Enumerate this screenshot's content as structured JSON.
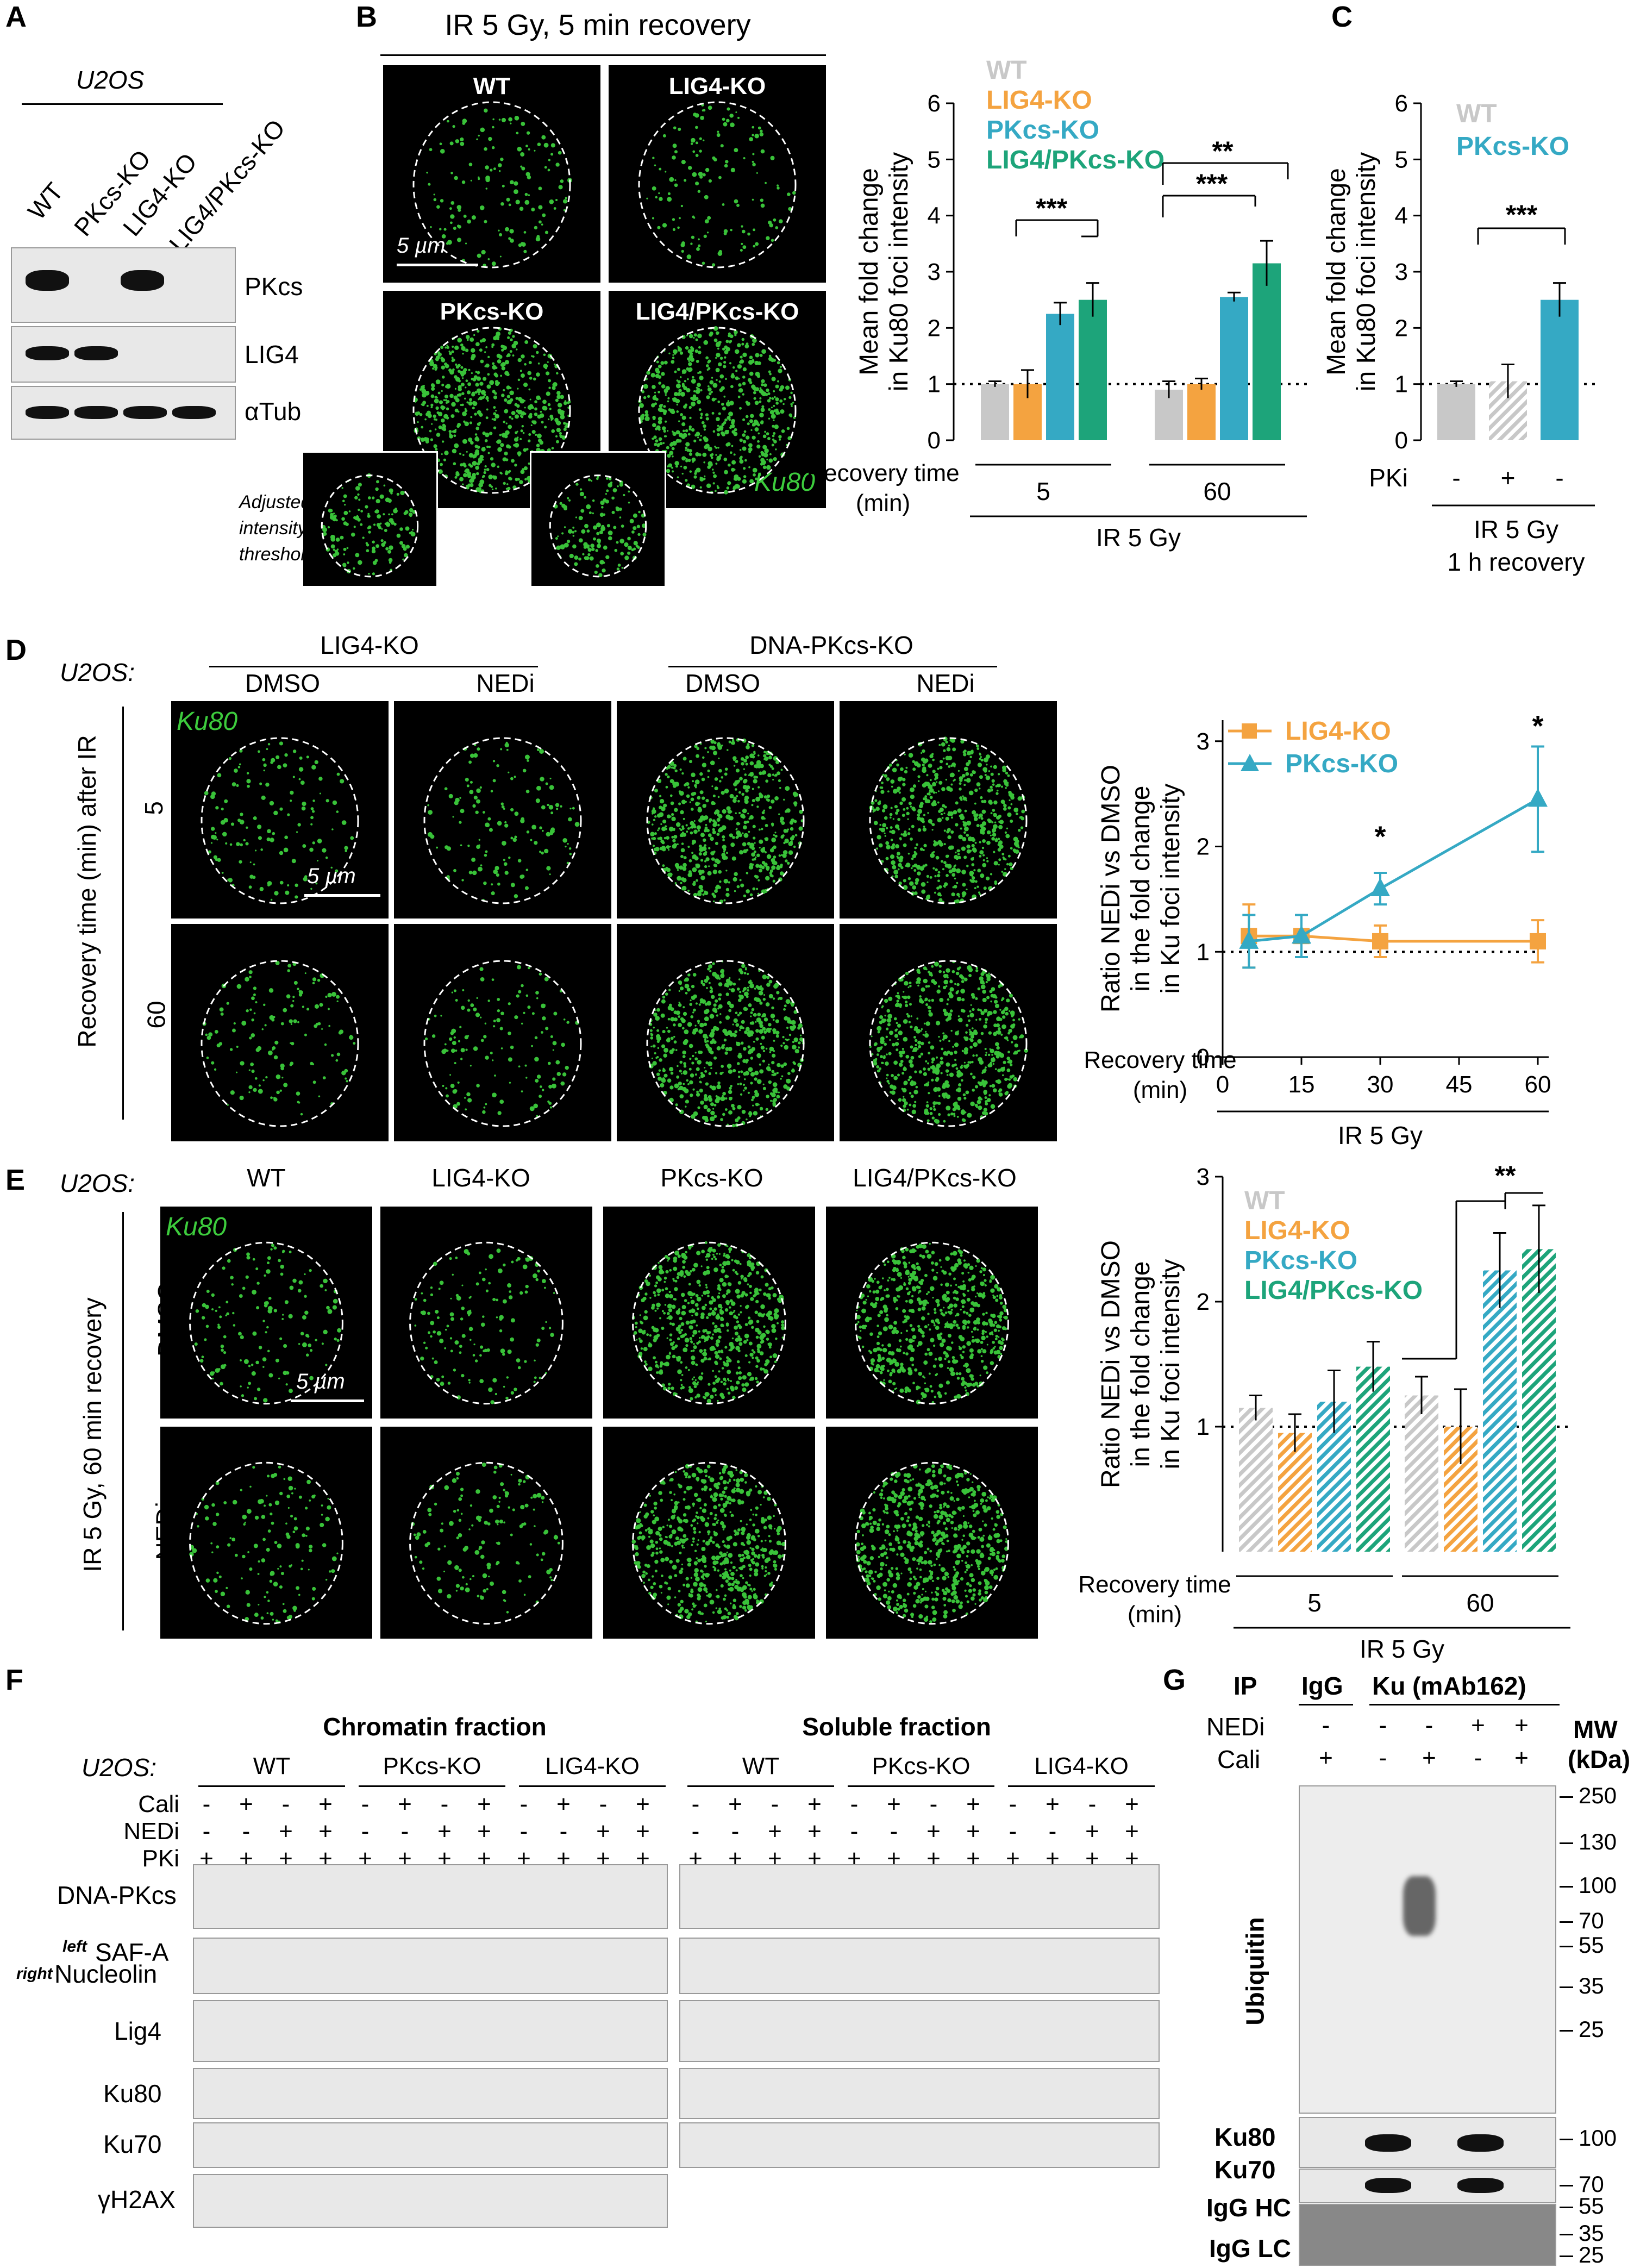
{
  "panel_labels": {
    "A": "A",
    "B": "B",
    "C": "C",
    "D": "D",
    "E": "E",
    "F": "F",
    "G": "G"
  },
  "panelA": {
    "cell_line": "U2OS",
    "lanes": [
      "WT",
      "PKcs-KO",
      "LIG4-KO",
      "LIG4/PKcs-KO"
    ],
    "blots": [
      "PKcs",
      "LIG4",
      "αTub"
    ]
  },
  "panelB": {
    "header": "IR 5 Gy, 5 min recovery",
    "images": [
      "WT",
      "LIG4-KO",
      "PKcs-KO",
      "LIG4/PKcs-KO"
    ],
    "scale": "5 µm",
    "stain": "Ku80",
    "adjusted_note": "Adjusted intensity threshold",
    "recovery_label": "Recovery time (min)",
    "ir_label": "IR 5 Gy"
  },
  "panelC": {
    "pki_label": "PKi",
    "pki_values": [
      "-",
      "+",
      "-"
    ],
    "ir_label": "IR 5  Gy",
    "recovery": "1 h recovery"
  },
  "panelD": {
    "cell_line": "U2OS:",
    "groups": [
      "LIG4-KO",
      "DNA-PKcs-KO"
    ],
    "treatments": [
      "DMSO",
      "NEDi",
      "DMSO",
      "NEDi"
    ],
    "row_axis": "Recovery time (min) after IR",
    "rows": [
      "5",
      "60"
    ],
    "stain": "Ku80",
    "scale": "5 µm"
  },
  "panelE": {
    "cell_line": "U2OS:",
    "columns": [
      "WT",
      "LIG4-KO",
      "PKcs-KO",
      "LIG4/PKcs-KO"
    ],
    "row_axis": "IR 5 Gy, 60 min recovery",
    "rows": [
      "DMSO",
      "NEDi"
    ],
    "stain": "Ku80",
    "scale": "5 µm"
  },
  "panelF": {
    "chromatin_title": "Chromatin fraction",
    "soluble_title": "Soluble fraction",
    "cell_line": "U2OS:",
    "groups": [
      "WT",
      "PKcs-KO",
      "LIG4-KO"
    ],
    "rows": {
      "cali": "Cali",
      "nedi": "NEDi",
      "pki": "PKi"
    },
    "cali": [
      "-",
      "+",
      "-",
      "+",
      "-",
      "+",
      "-",
      "+",
      "-",
      "+",
      "-",
      "+"
    ],
    "nedi": [
      "-",
      "-",
      "+",
      "+",
      "-",
      "-",
      "+",
      "+",
      "-",
      "-",
      "+",
      "+"
    ],
    "pki": [
      "+",
      "+",
      "+",
      "+",
      "+",
      "+",
      "+",
      "+",
      "+",
      "+",
      "+",
      "+"
    ],
    "blots": [
      "DNA-PKcs",
      "SAF-A",
      "Nucleolin",
      "Lig4",
      "Ku80",
      "Ku70",
      "γH2AX"
    ],
    "left": "left",
    "right": "right"
  },
  "panelG": {
    "ip": "IP",
    "igg": "IgG",
    "ku": "Ku (mAb162)",
    "nedi_label": "NEDi",
    "cali_label": "Cali",
    "nedi": [
      "-",
      "-",
      "-",
      "+",
      "+"
    ],
    "cali": [
      "+",
      "-",
      "+",
      "-",
      "+"
    ],
    "mw_label": "MW",
    "kda": "(kDa)",
    "blots": [
      "Ubiquitin",
      "Ku80",
      "Ku70",
      "IgG HC",
      "IgG LC"
    ],
    "mw_ubi": [
      "250",
      "130",
      "100",
      "70",
      "55",
      "35",
      "25"
    ],
    "mw_ku80": "100",
    "mw_ku70": "70",
    "mw_igg": [
      "55",
      "35",
      "25"
    ]
  },
  "chart_data": [
    {
      "type": "bar",
      "panel": "B",
      "ylabel": "Mean fold change in Ku80 foci intensity",
      "ylim": [
        0,
        6
      ],
      "yticks": [
        "0",
        "1",
        "2",
        "3",
        "4",
        "5",
        "6"
      ],
      "groups": [
        "5",
        "60"
      ],
      "series": [
        {
          "name": "WT",
          "color": "#c8c8c8",
          "values": [
            1.0,
            0.9
          ]
        },
        {
          "name": "LIG4-KO",
          "color": "#f4a340",
          "values": [
            1.0,
            1.0
          ]
        },
        {
          "name": "PKcs-KO",
          "color": "#35a9c4",
          "values": [
            2.25,
            2.55
          ]
        },
        {
          "name": "LIG4/PKcs-KO",
          "color": "#1da47a",
          "values": [
            2.5,
            3.15
          ]
        }
      ],
      "errors": [
        [
          0.05,
          0.15
        ],
        [
          0.25,
          0.1
        ],
        [
          0.2,
          0.08
        ],
        [
          0.3,
          0.4
        ]
      ],
      "significance": [
        "***",
        "***",
        "**"
      ]
    },
    {
      "type": "bar",
      "panel": "C",
      "ylabel": "Mean fold change in Ku80 foci intensity",
      "ylim": [
        0,
        6
      ],
      "yticks": [
        "0",
        "1",
        "2",
        "3",
        "4",
        "5",
        "6"
      ],
      "series": [
        {
          "name": "WT",
          "color": "#c8c8c8",
          "values": [
            1.0,
            1.05
          ]
        },
        {
          "name": "PKcs-KO",
          "color": "#35a9c4",
          "values": [
            2.5
          ]
        }
      ],
      "bar_values": [
        1.0,
        1.05,
        2.5
      ],
      "errors": [
        0.05,
        0.3,
        0.3
      ],
      "significance": [
        "***"
      ]
    },
    {
      "type": "line",
      "panel": "D",
      "ylabel": "Ratio NEDi vs DMSO in the fold change in Ku foci intensity",
      "xlabel": "Recovery time (min)",
      "under_label": "IR 5 Gy",
      "x": [
        5,
        15,
        30,
        60
      ],
      "xticks": [
        "0",
        "15",
        "30",
        "45",
        "60"
      ],
      "yticks": [
        "0",
        "1",
        "2",
        "3"
      ],
      "xlim": [
        0,
        60
      ],
      "ylim": [
        0,
        3.2
      ],
      "series": [
        {
          "name": "LIG4-KO",
          "color": "#f4a340",
          "values": [
            1.15,
            1.15,
            1.1,
            1.1
          ],
          "errors": [
            0.3,
            0.2,
            0.15,
            0.2
          ]
        },
        {
          "name": "PKcs-KO",
          "color": "#35a9c4",
          "values": [
            1.1,
            1.15,
            1.6,
            2.45
          ],
          "errors": [
            0.25,
            0.2,
            0.15,
            0.5
          ]
        }
      ],
      "significance": [
        "*",
        "*"
      ]
    },
    {
      "type": "bar",
      "panel": "E",
      "ylabel": "Ratio NEDi vs DMSO in the fold change in Ku foci intensity",
      "ylim": [
        0,
        3
      ],
      "yticks": [
        "1",
        "2",
        "3"
      ],
      "groups": [
        "5",
        "60"
      ],
      "series": [
        {
          "name": "WT",
          "color": "#c8c8c8",
          "values": [
            1.15,
            1.25
          ]
        },
        {
          "name": "LIG4-KO",
          "color": "#f4a340",
          "values": [
            0.95,
            1.0
          ]
        },
        {
          "name": "PKcs-KO",
          "color": "#35a9c4",
          "values": [
            1.2,
            2.25
          ]
        },
        {
          "name": "LIG4/PKcs-KO",
          "color": "#1da47a",
          "values": [
            1.48,
            2.42
          ]
        }
      ],
      "errors": [
        [
          0.1,
          0.15
        ],
        [
          0.15,
          0.3
        ],
        [
          0.25,
          0.3
        ],
        [
          0.2,
          0.35
        ]
      ],
      "significance": [
        "**"
      ]
    }
  ]
}
